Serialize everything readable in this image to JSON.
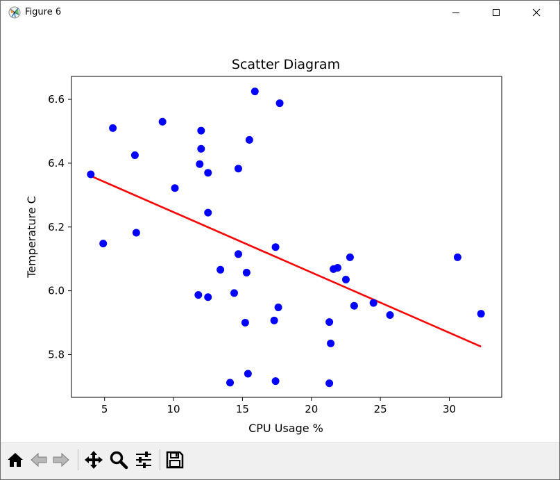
{
  "window": {
    "title": "Figure 6",
    "app_icon": "matplotlib-figure-icon",
    "controls": [
      "minimize-icon",
      "maximize-icon",
      "close-icon"
    ]
  },
  "toolbar": {
    "buttons": [
      {
        "name": "home-button",
        "icon": "home-icon"
      },
      {
        "name": "back-button",
        "icon": "arrow-left-icon"
      },
      {
        "name": "forward-button",
        "icon": "arrow-right-icon"
      },
      {
        "name": "pan-button",
        "icon": "move-arrows-icon"
      },
      {
        "name": "zoom-button",
        "icon": "magnifier-icon"
      },
      {
        "name": "configure-subplots-button",
        "icon": "sliders-icon"
      },
      {
        "name": "save-button",
        "icon": "floppy-disk-icon"
      }
    ]
  },
  "chart_data": {
    "type": "scatter",
    "title": "Scatter Diagram",
    "xlabel": "CPU Usage %",
    "ylabel": "Temperature C",
    "xlim": [
      2.6,
      33.8
    ],
    "ylim": [
      5.666,
      6.672
    ],
    "xticks": [
      5,
      10,
      15,
      20,
      25,
      30
    ],
    "yticks": [
      5.8,
      6.0,
      6.2,
      6.4,
      6.6
    ],
    "xtick_labels": [
      "5",
      "10",
      "15",
      "20",
      "25",
      "30"
    ],
    "ytick_labels": [
      "5.8",
      "6.0",
      "6.2",
      "6.4",
      "6.6"
    ],
    "grid": false,
    "legend": null,
    "colors": {
      "points": "#0000ff",
      "trendline": "#ff0000"
    },
    "points": [
      {
        "x": 4.0,
        "y": 6.365
      },
      {
        "x": 4.9,
        "y": 6.148
      },
      {
        "x": 5.6,
        "y": 6.51
      },
      {
        "x": 7.2,
        "y": 6.425
      },
      {
        "x": 7.3,
        "y": 6.182
      },
      {
        "x": 9.2,
        "y": 6.53
      },
      {
        "x": 10.1,
        "y": 6.322
      },
      {
        "x": 11.8,
        "y": 5.987
      },
      {
        "x": 11.9,
        "y": 6.397
      },
      {
        "x": 12.0,
        "y": 6.502
      },
      {
        "x": 12.0,
        "y": 6.445
      },
      {
        "x": 12.5,
        "y": 6.37
      },
      {
        "x": 12.5,
        "y": 6.245
      },
      {
        "x": 12.5,
        "y": 5.98
      },
      {
        "x": 13.4,
        "y": 6.066
      },
      {
        "x": 14.1,
        "y": 5.712
      },
      {
        "x": 14.4,
        "y": 5.993
      },
      {
        "x": 14.7,
        "y": 6.383
      },
      {
        "x": 14.7,
        "y": 6.115
      },
      {
        "x": 15.2,
        "y": 5.9
      },
      {
        "x": 15.3,
        "y": 6.057
      },
      {
        "x": 15.4,
        "y": 5.74
      },
      {
        "x": 15.5,
        "y": 6.473
      },
      {
        "x": 15.9,
        "y": 6.625
      },
      {
        "x": 17.3,
        "y": 5.907
      },
      {
        "x": 17.4,
        "y": 6.137
      },
      {
        "x": 17.4,
        "y": 5.717
      },
      {
        "x": 17.6,
        "y": 5.948
      },
      {
        "x": 17.7,
        "y": 6.588
      },
      {
        "x": 21.3,
        "y": 5.902
      },
      {
        "x": 21.3,
        "y": 5.71
      },
      {
        "x": 21.4,
        "y": 5.835
      },
      {
        "x": 21.6,
        "y": 6.068
      },
      {
        "x": 21.9,
        "y": 6.072
      },
      {
        "x": 22.5,
        "y": 6.035
      },
      {
        "x": 22.8,
        "y": 6.105
      },
      {
        "x": 23.1,
        "y": 5.953
      },
      {
        "x": 24.5,
        "y": 5.962
      },
      {
        "x": 25.7,
        "y": 5.924
      },
      {
        "x": 30.6,
        "y": 6.105
      },
      {
        "x": 32.3,
        "y": 5.928
      }
    ],
    "trendline": {
      "x": [
        4.0,
        32.3
      ],
      "y": [
        6.36,
        5.825
      ]
    }
  }
}
